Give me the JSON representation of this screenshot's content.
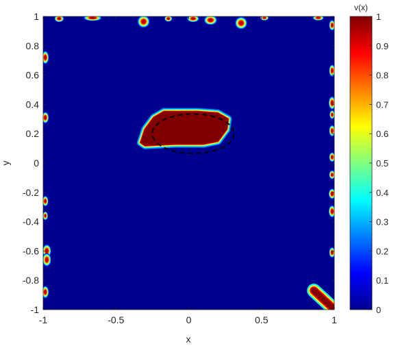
{
  "chart_data": {
    "type": "heatmap",
    "title": "",
    "xlabel": "x",
    "ylabel": "y",
    "xlim": [
      -1,
      1
    ],
    "ylim": [
      -1,
      1
    ],
    "xticks": [
      -1,
      -0.5,
      0,
      0.5,
      1
    ],
    "xtick_labels": [
      "-1",
      "-0.5",
      "0",
      "0.5",
      "1"
    ],
    "yticks": [
      1,
      0.8,
      0.6,
      0.4,
      0.2,
      0,
      -0.2,
      -0.4,
      -0.6,
      -0.8,
      -1
    ],
    "ytick_labels": [
      "1",
      "0.8",
      "0.6",
      "0.4",
      "0.2",
      "0",
      "-0.2",
      "-0.4",
      "-0.6",
      "-0.8",
      "-1"
    ],
    "grid": false,
    "colormap": "jet",
    "colorbar": {
      "title": "v(x)",
      "range": [
        0,
        1
      ],
      "ticks": [
        1,
        0.9,
        0.8,
        0.7,
        0.6,
        0.5,
        0.4,
        0.3,
        0.2,
        0.1,
        0
      ],
      "tick_labels": [
        "1",
        "0.9",
        "0.8",
        "0.7",
        "0.6",
        "0.5",
        "0.4",
        "0.3",
        "0.2",
        "0.1",
        "0"
      ]
    },
    "background_value": 0,
    "main_region": {
      "value": 1,
      "polygon": [
        [
          -0.33,
          0.14
        ],
        [
          -0.3,
          0.23
        ],
        [
          -0.24,
          0.31
        ],
        [
          -0.17,
          0.35
        ],
        [
          0.06,
          0.35
        ],
        [
          0.2,
          0.34
        ],
        [
          0.27,
          0.3
        ],
        [
          0.26,
          0.23
        ],
        [
          0.2,
          0.15
        ],
        [
          0.1,
          0.13
        ],
        [
          -0.1,
          0.13
        ],
        [
          -0.3,
          0.12
        ]
      ]
    },
    "reference_ellipse": {
      "style": "dashed",
      "color": "#000000",
      "center": [
        0.03,
        0.2
      ],
      "radii": [
        0.28,
        0.135
      ],
      "rotation_deg": 0
    },
    "edge_blobs": [
      {
        "x": -0.89,
        "y": 0.985,
        "rx": 0.022,
        "ry": 0.016
      },
      {
        "x": -0.66,
        "y": 0.99,
        "rx": 0.042,
        "ry": 0.014
      },
      {
        "x": -0.31,
        "y": 0.965,
        "rx": 0.028,
        "ry": 0.028
      },
      {
        "x": -0.14,
        "y": 0.985,
        "rx": 0.018,
        "ry": 0.014
      },
      {
        "x": 0.03,
        "y": 0.985,
        "rx": 0.028,
        "ry": 0.016
      },
      {
        "x": 0.15,
        "y": 0.975,
        "rx": 0.03,
        "ry": 0.022
      },
      {
        "x": 0.36,
        "y": 0.955,
        "rx": 0.028,
        "ry": 0.028
      },
      {
        "x": 0.52,
        "y": 0.99,
        "rx": 0.02,
        "ry": 0.012
      },
      {
        "x": 0.89,
        "y": 0.99,
        "rx": 0.026,
        "ry": 0.012
      },
      {
        "x": -0.985,
        "y": 0.72,
        "rx": 0.016,
        "ry": 0.03
      },
      {
        "x": -0.985,
        "y": 0.31,
        "rx": 0.016,
        "ry": 0.026
      },
      {
        "x": -0.985,
        "y": -0.26,
        "rx": 0.014,
        "ry": 0.024
      },
      {
        "x": -0.985,
        "y": -0.36,
        "rx": 0.012,
        "ry": 0.02
      },
      {
        "x": -0.975,
        "y": -0.6,
        "rx": 0.02,
        "ry": 0.03
      },
      {
        "x": -0.975,
        "y": -0.66,
        "rx": 0.02,
        "ry": 0.03
      },
      {
        "x": -0.985,
        "y": -0.88,
        "rx": 0.016,
        "ry": 0.028
      },
      {
        "x": 0.985,
        "y": 0.94,
        "rx": 0.014,
        "ry": 0.024
      },
      {
        "x": 0.985,
        "y": 0.63,
        "rx": 0.014,
        "ry": 0.028
      },
      {
        "x": 0.985,
        "y": 0.41,
        "rx": 0.016,
        "ry": 0.03
      },
      {
        "x": 0.985,
        "y": 0.33,
        "rx": 0.012,
        "ry": 0.02
      },
      {
        "x": 0.985,
        "y": 0.22,
        "rx": 0.014,
        "ry": 0.026
      },
      {
        "x": 0.985,
        "y": 0.04,
        "rx": 0.014,
        "ry": 0.022
      },
      {
        "x": 0.985,
        "y": -0.08,
        "rx": 0.014,
        "ry": 0.02
      },
      {
        "x": 0.985,
        "y": -0.21,
        "rx": 0.016,
        "ry": 0.024
      },
      {
        "x": 0.985,
        "y": -0.33,
        "rx": 0.016,
        "ry": 0.028
      },
      {
        "x": 0.985,
        "y": -0.61,
        "rx": 0.014,
        "ry": 0.024
      }
    ],
    "corner_streak": {
      "value": 1,
      "from": [
        0.86,
        -0.87
      ],
      "to": [
        0.98,
        -0.98
      ],
      "width": 0.05
    }
  },
  "colors": {
    "background": "#00008f",
    "region": "#800000",
    "axis": "#262626"
  }
}
